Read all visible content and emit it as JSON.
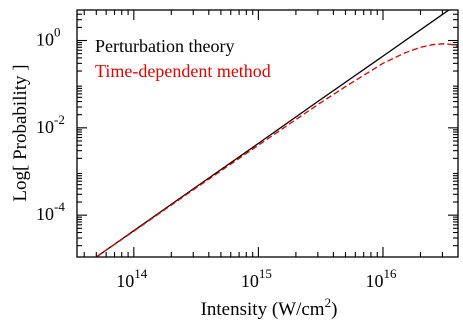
{
  "chart_data": {
    "type": "line",
    "title": "",
    "xlabel": {
      "prefix": "Intensity (W/cm",
      "sup": "2",
      "suffix": ")"
    },
    "ylabel": "Log[ Probability ]",
    "x_scale": "log",
    "y_scale": "log",
    "xlim": [
      35000000000000,
      40000000000000000
    ],
    "ylim": [
      1.1e-05,
      5
    ],
    "x_major_ticks": [
      {
        "value": 100000000000000,
        "base": "10",
        "exp": "14"
      },
      {
        "value": 1000000000000000,
        "base": "10",
        "exp": "15"
      },
      {
        "value": 10000000000000000,
        "base": "10",
        "exp": "16"
      }
    ],
    "y_major_ticks": [
      {
        "value": 1,
        "base": "10",
        "exp": "0"
      },
      {
        "value": 0.01,
        "base": "10",
        "exp": "-2"
      },
      {
        "value": 0.0001,
        "base": "10",
        "exp": "-4"
      }
    ],
    "grid": false,
    "legend_placement": "top-left",
    "series": [
      {
        "name": "Perturbation theory",
        "color": "#000000",
        "style": "solid",
        "x": [
          50000000000000,
          100000000000000,
          300000000000000,
          1000000000000000,
          3000000000000000,
          10000000000000000,
          20000000000000000,
          40000000000000000
        ],
        "y": [
          1.1e-05,
          4.4e-05,
          0.0004,
          0.0044,
          0.04,
          0.44,
          1.76,
          7.0
        ]
      },
      {
        "name": "Time-dependent method",
        "color": "#e00000",
        "style": "dashed",
        "x": [
          50000000000000,
          100000000000000,
          300000000000000,
          1000000000000000,
          3000000000000000,
          5000000000000000,
          10000000000000000,
          15000000000000000,
          20000000000000000,
          25000000000000000,
          30000000000000000,
          35000000000000000,
          40000000000000000
        ],
        "y": [
          1.1e-05,
          4.3e-05,
          0.00038,
          0.004,
          0.034,
          0.088,
          0.3,
          0.52,
          0.7,
          0.8,
          0.84,
          0.82,
          0.74
        ]
      }
    ]
  }
}
